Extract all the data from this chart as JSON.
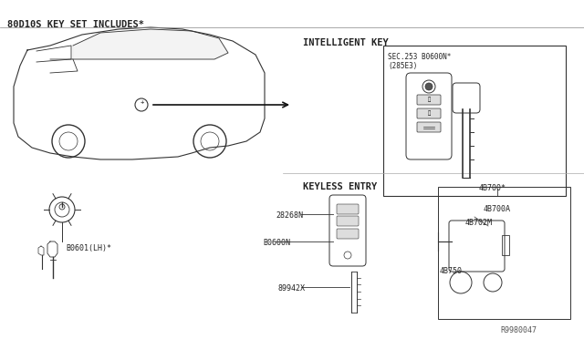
{
  "title": "80D10S KEY SET INCLUDES*",
  "bg_color": "#ffffff",
  "line_color": "#333333",
  "text_color": "#222222",
  "section_intelligent_key": "INTELLIGENT KEY",
  "section_keyless_entry": "KEYLESS ENTRY",
  "label_b0601lh": "B0601(LH)*",
  "label_b0600n": "B0600N",
  "label_28268n": "28268N",
  "label_89942x": "89942X",
  "label_4b700star": "4B700*",
  "label_4b700a": "4B700A",
  "label_4b702m": "4B702M",
  "label_4b750": "4B750",
  "label_r9980047": "R9980047",
  "label_ik_sec": "SEC.253 B0600N*",
  "label_ik_285e3": "(285E3)",
  "arrow_color": "#111111",
  "box_color": "#cccccc",
  "font_size_title": 7.5,
  "font_size_label": 6.0,
  "font_size_section": 7.5
}
